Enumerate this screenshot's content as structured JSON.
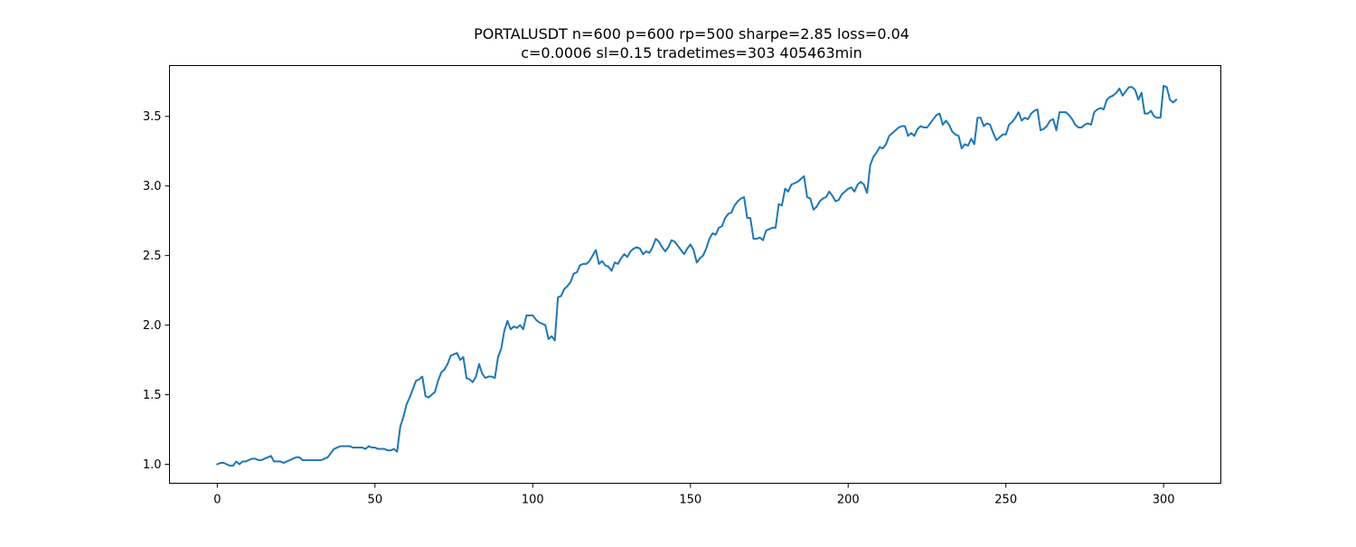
{
  "chart_data": {
    "type": "line",
    "title_line1": "PORTALUSDT n=600 p=600 rp=500 sharpe=2.85 loss=0.04",
    "title_line2": "c=0.0006 sl=0.15 tradetimes=303  405463min",
    "xlabel": "",
    "ylabel": "",
    "xlim": [
      -15.15,
      318.15
    ],
    "ylim": [
      0.8635,
      3.8655
    ],
    "x_ticks": [
      0,
      50,
      100,
      150,
      200,
      250,
      300
    ],
    "y_ticks": [
      1.0,
      1.5,
      2.0,
      2.5,
      3.0,
      3.5
    ],
    "x_tick_labels": [
      "0",
      "50",
      "100",
      "150",
      "200",
      "250",
      "300"
    ],
    "y_tick_labels": [
      "1.0",
      "1.5",
      "2.0",
      "2.5",
      "3.0",
      "3.5"
    ],
    "grid": false,
    "line_color": "#1f77b4",
    "series": [
      {
        "values": [
          1.0,
          1.01,
          1.01,
          1.0,
          0.99,
          0.99,
          1.02,
          1.0,
          1.02,
          1.02,
          1.03,
          1.04,
          1.04,
          1.03,
          1.03,
          1.04,
          1.05,
          1.06,
          1.02,
          1.02,
          1.02,
          1.01,
          1.02,
          1.03,
          1.04,
          1.05,
          1.05,
          1.03,
          1.03,
          1.03,
          1.03,
          1.03,
          1.03,
          1.03,
          1.04,
          1.05,
          1.08,
          1.11,
          1.12,
          1.13,
          1.13,
          1.13,
          1.13,
          1.12,
          1.12,
          1.12,
          1.12,
          1.11,
          1.13,
          1.12,
          1.12,
          1.11,
          1.11,
          1.11,
          1.1,
          1.1,
          1.11,
          1.09,
          1.27,
          1.34,
          1.43,
          1.48,
          1.54,
          1.6,
          1.61,
          1.63,
          1.49,
          1.48,
          1.5,
          1.52,
          1.6,
          1.66,
          1.68,
          1.72,
          1.78,
          1.79,
          1.8,
          1.75,
          1.77,
          1.62,
          1.61,
          1.59,
          1.63,
          1.72,
          1.65,
          1.62,
          1.63,
          1.63,
          1.62,
          1.77,
          1.83,
          1.96,
          2.03,
          1.97,
          1.99,
          1.98,
          2.0,
          1.97,
          2.07,
          2.07,
          2.07,
          2.04,
          2.02,
          2.01,
          2.0,
          1.9,
          1.92,
          1.89,
          2.2,
          2.21,
          2.26,
          2.28,
          2.31,
          2.37,
          2.38,
          2.43,
          2.44,
          2.44,
          2.46,
          2.5,
          2.54,
          2.44,
          2.46,
          2.43,
          2.42,
          2.39,
          2.45,
          2.44,
          2.48,
          2.51,
          2.49,
          2.53,
          2.55,
          2.56,
          2.55,
          2.51,
          2.53,
          2.52,
          2.56,
          2.62,
          2.6,
          2.56,
          2.53,
          2.56,
          2.61,
          2.6,
          2.57,
          2.54,
          2.51,
          2.55,
          2.58,
          2.54,
          2.45,
          2.48,
          2.5,
          2.55,
          2.62,
          2.66,
          2.65,
          2.7,
          2.71,
          2.77,
          2.8,
          2.81,
          2.86,
          2.89,
          2.91,
          2.92,
          2.77,
          2.77,
          2.62,
          2.62,
          2.63,
          2.61,
          2.68,
          2.69,
          2.7,
          2.7,
          2.87,
          2.86,
          2.98,
          2.96,
          3.01,
          3.02,
          3.03,
          3.05,
          3.07,
          2.92,
          2.91,
          2.83,
          2.85,
          2.89,
          2.91,
          2.92,
          2.96,
          2.93,
          2.89,
          2.9,
          2.94,
          2.96,
          2.98,
          2.99,
          2.96,
          3.01,
          3.03,
          3.01,
          2.95,
          3.15,
          3.21,
          3.24,
          3.28,
          3.27,
          3.3,
          3.36,
          3.38,
          3.4,
          3.42,
          3.43,
          3.43,
          3.36,
          3.38,
          3.36,
          3.41,
          3.43,
          3.42,
          3.42,
          3.45,
          3.48,
          3.51,
          3.52,
          3.44,
          3.47,
          3.44,
          3.39,
          3.37,
          3.36,
          3.27,
          3.3,
          3.29,
          3.34,
          3.3,
          3.49,
          3.49,
          3.43,
          3.45,
          3.44,
          3.38,
          3.33,
          3.35,
          3.37,
          3.37,
          3.44,
          3.46,
          3.49,
          3.53,
          3.47,
          3.49,
          3.48,
          3.52,
          3.54,
          3.55,
          3.4,
          3.41,
          3.43,
          3.47,
          3.48,
          3.4,
          3.53,
          3.53,
          3.53,
          3.51,
          3.48,
          3.44,
          3.42,
          3.42,
          3.44,
          3.45,
          3.44,
          3.53,
          3.55,
          3.56,
          3.55,
          3.62,
          3.64,
          3.65,
          3.67,
          3.7,
          3.65,
          3.68,
          3.71,
          3.71,
          3.69,
          3.62,
          3.67,
          3.52,
          3.52,
          3.54,
          3.5,
          3.49,
          3.49,
          3.72,
          3.71,
          3.62,
          3.6,
          3.62
        ]
      }
    ]
  }
}
